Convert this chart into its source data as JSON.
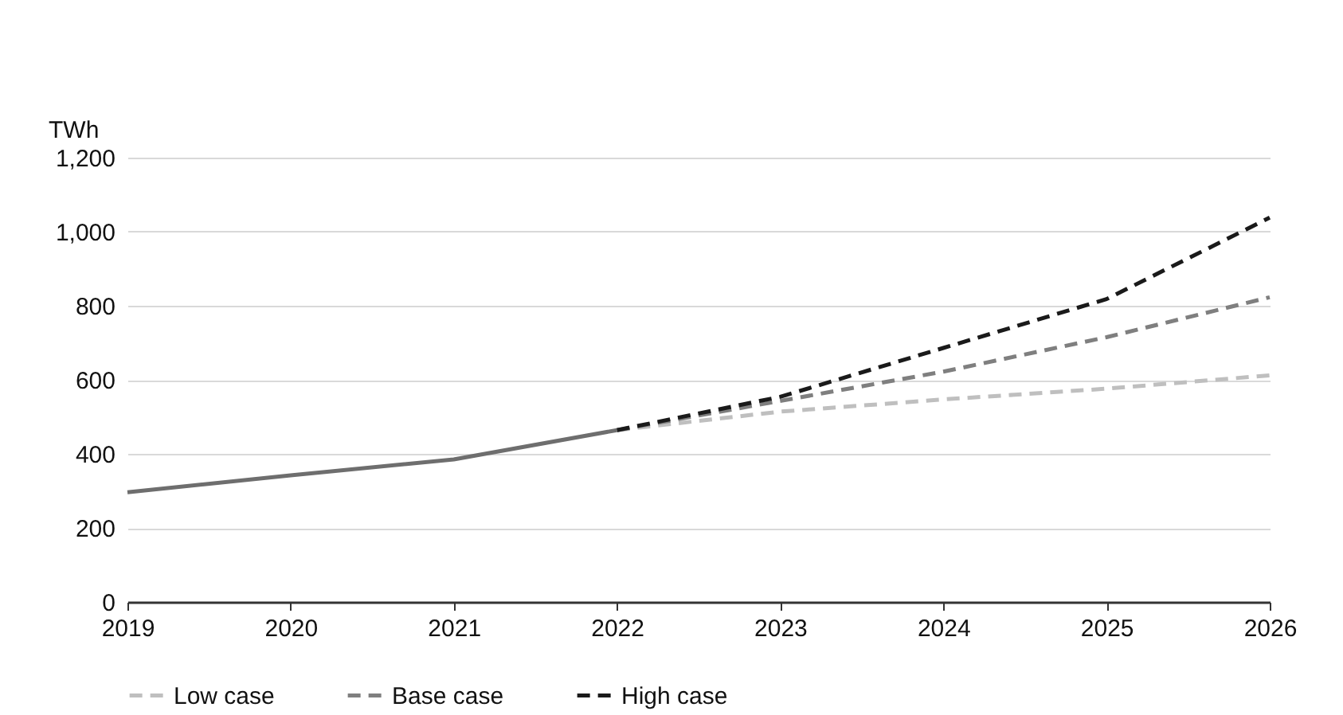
{
  "chart_data": {
    "type": "line",
    "ylabel": "TWh",
    "x": [
      2019,
      2020,
      2021,
      2022,
      2023,
      2024,
      2025,
      2026
    ],
    "xlim": [
      2019,
      2026
    ],
    "xticks": [
      2019,
      2020,
      2021,
      2022,
      2023,
      2024,
      2025,
      2026
    ],
    "ylim": [
      0,
      1200
    ],
    "yticks": [
      0,
      200,
      400,
      600,
      800,
      {
        "value": 1000,
        "label": "1,000"
      },
      {
        "value": 1200,
        "label": "1,200"
      }
    ],
    "grid": "y",
    "legend": "bottom",
    "series": [
      {
        "color": "#6e6e6e",
        "line_style": "solid",
        "values": [
          296,
          342,
          385,
          464,
          null,
          null,
          null,
          null
        ]
      },
      {
        "name": "Low case",
        "color": "#bfbfbf",
        "line_style": "dashed",
        "values": [
          null,
          null,
          null,
          464,
          514,
          547,
          576,
          612
        ]
      },
      {
        "name": "Base case",
        "color": "#7f7f7f",
        "line_style": "dashed",
        "values": [
          null,
          null,
          null,
          464,
          543,
          622,
          715,
          823
        ]
      },
      {
        "name": "High case",
        "color": "#1a1a1a",
        "line_style": "dashed",
        "values": [
          null,
          null,
          null,
          464,
          554,
          686,
          818,
          1038
        ]
      }
    ]
  }
}
